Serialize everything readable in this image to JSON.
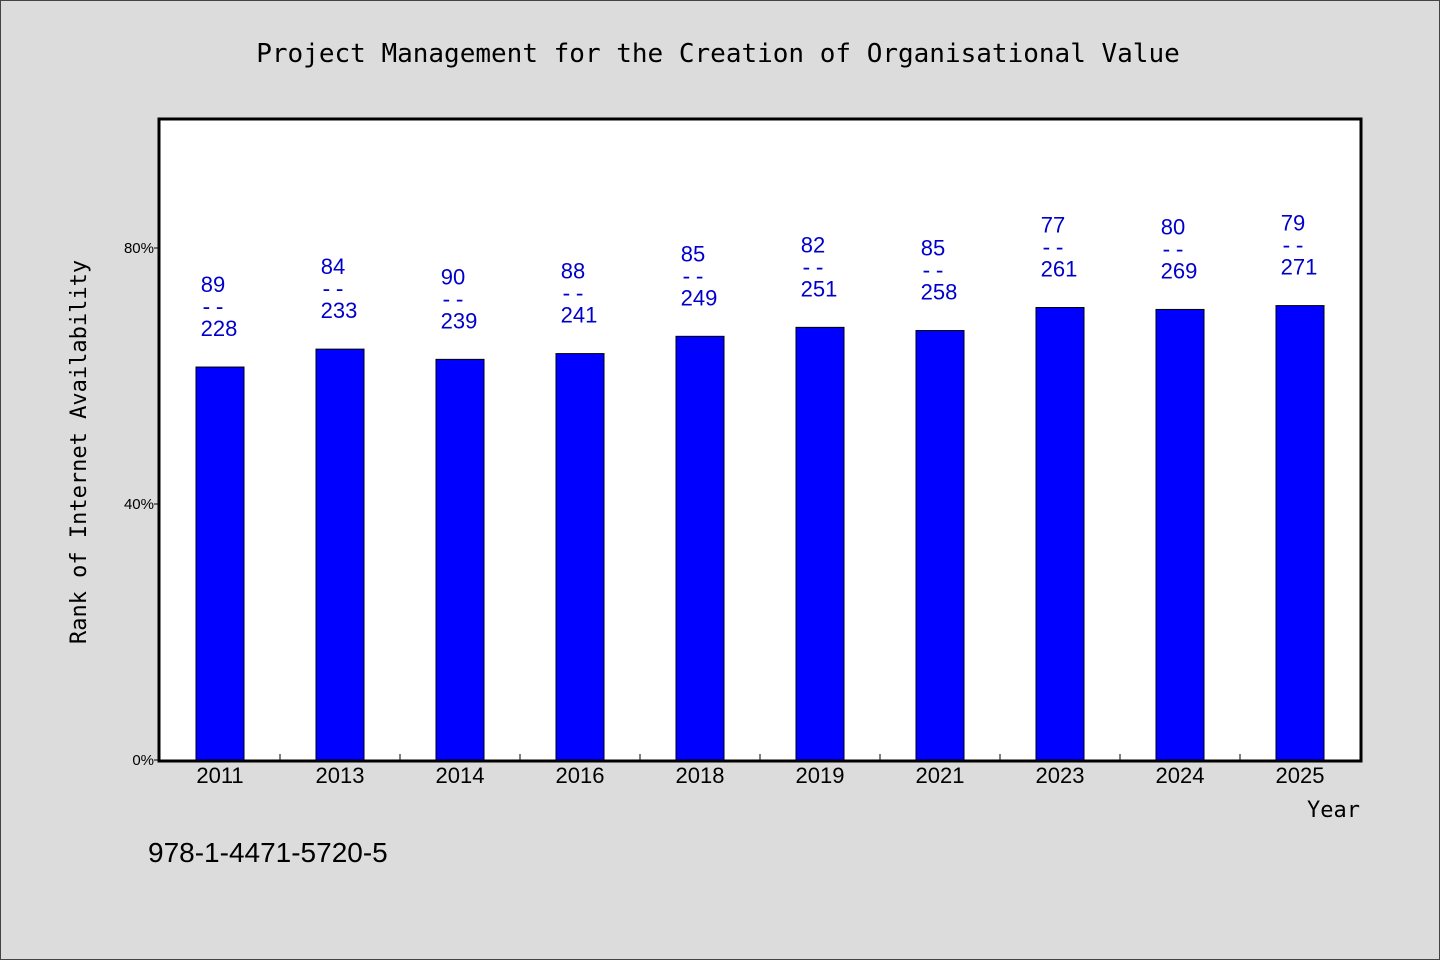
{
  "chart_data": {
    "type": "bar",
    "title": "Project Management for the Creation of Organisational Value",
    "xlabel": "Year",
    "ylabel": "Rank of Internet Availability",
    "categories": [
      "2011",
      "2013",
      "2014",
      "2016",
      "2018",
      "2019",
      "2021",
      "2023",
      "2024",
      "2025"
    ],
    "values": [
      61.4,
      64.2,
      62.6,
      63.5,
      66.2,
      67.6,
      67.1,
      70.7,
      70.4,
      71.0
    ],
    "label_top": [
      "89",
      "84",
      "90",
      "88",
      "85",
      "82",
      "85",
      "77",
      "80",
      "79"
    ],
    "label_bottom": [
      "228",
      "233",
      "239",
      "241",
      "249",
      "251",
      "258",
      "261",
      "269",
      "271"
    ],
    "label_separator": "--",
    "ylim": [
      0,
      100
    ],
    "yticks": [
      0,
      40,
      80
    ],
    "ytick_labels": [
      "0%",
      "40%",
      "80%"
    ],
    "grid": false,
    "bar_color": "#0000ff",
    "label_color": "#0000cc",
    "background": "#dcdcdc",
    "plot_background": "#ffffff"
  },
  "footer_text": "978-1-4471-5720-5"
}
